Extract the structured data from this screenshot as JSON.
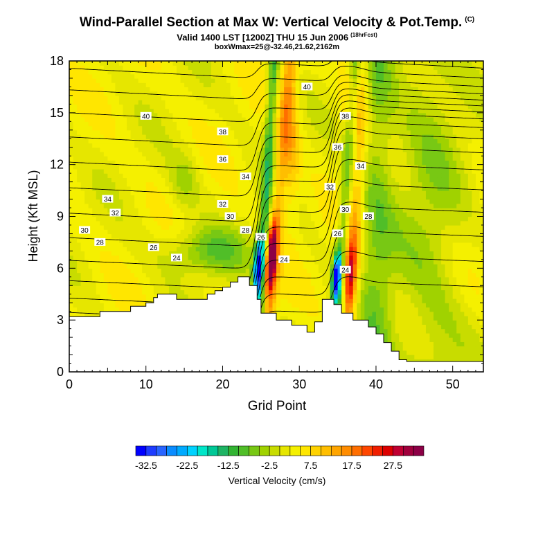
{
  "header": {
    "title": "Wind-Parallel Section at Max W: Vertical Velocity & Pot.Temp.",
    "title_tag": "(C)",
    "subtitle": "Valid 1400 LST [1200Z] THU 15 Jun 2006",
    "subtitle_tag": "(18hrFcst)",
    "boxline": "boxWmax=25@-32.46,21.62,2162m"
  },
  "chart_data": {
    "type": "heatmap",
    "xlabel": "Grid Point",
    "ylabel": "Height (Kft MSL)",
    "xlim": [
      0,
      54
    ],
    "ylim": [
      0,
      18
    ],
    "xticks": [
      0,
      10,
      20,
      30,
      40,
      50
    ],
    "yticks": [
      0,
      3,
      6,
      9,
      12,
      15,
      18
    ],
    "colorbar": {
      "label": "Vertical Velocity (cm/s)",
      "tick_labels": [
        "-32.5",
        "-22.5",
        "-12.5",
        "-2.5",
        "7.5",
        "17.5",
        "27.5"
      ],
      "tick_values": [
        -32.5,
        -22.5,
        -12.5,
        -2.5,
        7.5,
        17.5,
        27.5
      ],
      "min": -35,
      "max": 35,
      "step": 2.5,
      "colors": [
        "#0000ff",
        "#1e3cff",
        "#2864ff",
        "#0a8cff",
        "#00aaff",
        "#00d2ff",
        "#00e6c8",
        "#00c896",
        "#1eb464",
        "#32b432",
        "#50be28",
        "#78c814",
        "#a0d200",
        "#c8dc00",
        "#e6e600",
        "#f5f000",
        "#ffe600",
        "#ffd200",
        "#ffbe00",
        "#ffa500",
        "#ff8c00",
        "#ff6e00",
        "#ff4600",
        "#f01e00",
        "#dc0000",
        "#c00032",
        "#a0003c",
        "#8c0046"
      ]
    },
    "terrain": [
      [
        0,
        3.2
      ],
      [
        4,
        3.2
      ],
      [
        4,
        3.5
      ],
      [
        8,
        3.5
      ],
      [
        8,
        3.8
      ],
      [
        10,
        3.8
      ],
      [
        10,
        4.0
      ],
      [
        11,
        4.0
      ],
      [
        11,
        4.3
      ],
      [
        11.5,
        4.3
      ],
      [
        11.5,
        4.5
      ],
      [
        14,
        4.5
      ],
      [
        14,
        4.2
      ],
      [
        18,
        4.2
      ],
      [
        18,
        4.5
      ],
      [
        19,
        4.5
      ],
      [
        19,
        4.7
      ],
      [
        20,
        4.7
      ],
      [
        20,
        4.9
      ],
      [
        21,
        4.9
      ],
      [
        21,
        5.2
      ],
      [
        22,
        5.2
      ],
      [
        22,
        5.5
      ],
      [
        23.5,
        5.5
      ],
      [
        23.5,
        5.0
      ],
      [
        24.5,
        5.0
      ],
      [
        24.5,
        4.2
      ],
      [
        25,
        4.2
      ],
      [
        25,
        3.4
      ],
      [
        27,
        3.4
      ],
      [
        27,
        3.0
      ],
      [
        29,
        3.0
      ],
      [
        29,
        2.7
      ],
      [
        31,
        2.7
      ],
      [
        31,
        2.3
      ],
      [
        32,
        2.3
      ],
      [
        32,
        2.9
      ],
      [
        33,
        2.9
      ],
      [
        33,
        4.2
      ],
      [
        34.5,
        4.2
      ],
      [
        34.5,
        3.9
      ],
      [
        35.5,
        3.9
      ],
      [
        35.5,
        3.4
      ],
      [
        37,
        3.4
      ],
      [
        37,
        3.0
      ],
      [
        39,
        3.0
      ],
      [
        39,
        2.6
      ],
      [
        40,
        2.6
      ],
      [
        40,
        2.2
      ],
      [
        41,
        2.2
      ],
      [
        41,
        1.7
      ],
      [
        42,
        1.7
      ],
      [
        42,
        1.2
      ],
      [
        43,
        1.2
      ],
      [
        43,
        0.7
      ],
      [
        44,
        0.7
      ],
      [
        44,
        0.6
      ],
      [
        54,
        0.6
      ]
    ],
    "contour_labels": [
      {
        "x": 10,
        "y": 14.8,
        "label": "40"
      },
      {
        "x": 31,
        "y": 16.5,
        "label": "40"
      },
      {
        "x": 20,
        "y": 13.9,
        "label": "38"
      },
      {
        "x": 36,
        "y": 14.8,
        "label": "38"
      },
      {
        "x": 20,
        "y": 12.3,
        "label": "36"
      },
      {
        "x": 35,
        "y": 13.0,
        "label": "36"
      },
      {
        "x": 5,
        "y": 10.0,
        "label": "34"
      },
      {
        "x": 23,
        "y": 11.3,
        "label": "34"
      },
      {
        "x": 38,
        "y": 11.9,
        "label": "34"
      },
      {
        "x": 6,
        "y": 9.2,
        "label": "32"
      },
      {
        "x": 20,
        "y": 9.7,
        "label": "32"
      },
      {
        "x": 34,
        "y": 10.7,
        "label": "32"
      },
      {
        "x": 2,
        "y": 8.2,
        "label": "30"
      },
      {
        "x": 21,
        "y": 9.0,
        "label": "30"
      },
      {
        "x": 36,
        "y": 9.4,
        "label": "30"
      },
      {
        "x": 4,
        "y": 7.5,
        "label": "28"
      },
      {
        "x": 39,
        "y": 9.0,
        "label": "28"
      },
      {
        "x": 23,
        "y": 8.2,
        "label": "28"
      },
      {
        "x": 11,
        "y": 7.2,
        "label": "26"
      },
      {
        "x": 25,
        "y": 7.8,
        "label": "26"
      },
      {
        "x": 35,
        "y": 8.0,
        "label": "26"
      },
      {
        "x": 14,
        "y": 6.6,
        "label": "24"
      },
      {
        "x": 28,
        "y": 6.5,
        "label": "24"
      },
      {
        "x": 36,
        "y": 5.9,
        "label": "24"
      }
    ]
  }
}
